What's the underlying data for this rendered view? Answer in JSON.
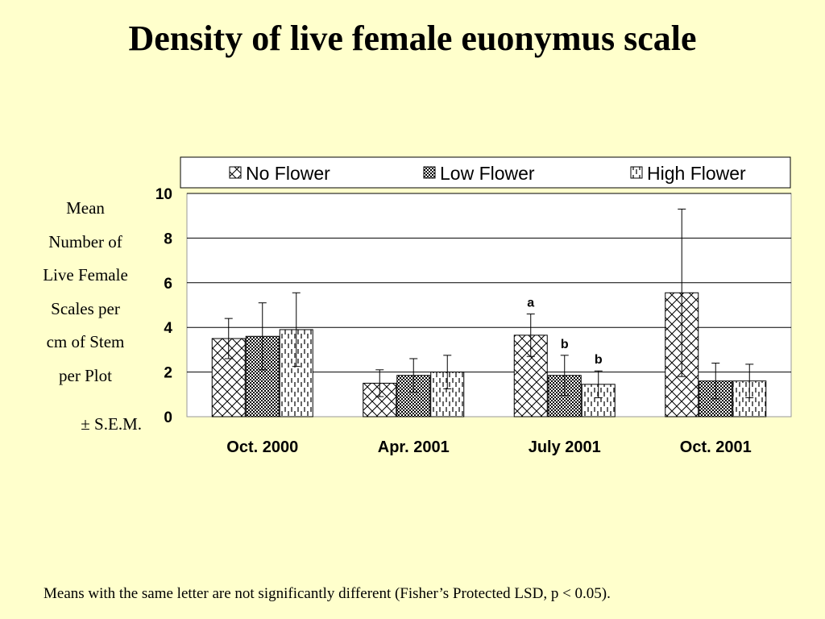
{
  "slide": {
    "title": "Density of live female euonymus scale",
    "ylabel_lines": [
      "Mean",
      "Number of",
      "Live Female",
      "Scales per",
      "cm of Stem",
      "per Plot"
    ],
    "ylabel_sem": "± S.E.M.",
    "footnote": "Means with the same letter are not significantly different (Fisher’s Protected LSD, p < 0.05)."
  },
  "chart_data": {
    "type": "bar",
    "categories": [
      "Oct. 2000",
      "Apr. 2001",
      "July 2001",
      "Oct. 2001"
    ],
    "series": [
      {
        "name": "No Flower",
        "values": [
          3.5,
          1.5,
          3.65,
          5.55
        ],
        "errors": [
          0.9,
          0.6,
          0.95,
          3.75
        ],
        "labels": [
          "",
          "",
          "a",
          ""
        ],
        "pattern": "diagonal-cross"
      },
      {
        "name": "Low Flower",
        "values": [
          3.6,
          1.85,
          1.85,
          1.6
        ],
        "errors": [
          1.5,
          0.75,
          0.9,
          0.8
        ],
        "labels": [
          "",
          "",
          "b",
          ""
        ],
        "pattern": "dense-check"
      },
      {
        "name": "High Flower",
        "values": [
          3.9,
          2.0,
          1.45,
          1.6
        ],
        "errors": [
          1.65,
          0.75,
          0.6,
          0.75
        ],
        "labels": [
          "",
          "",
          "b",
          ""
        ],
        "pattern": "vertical-dash"
      }
    ],
    "ylim": [
      0,
      10
    ],
    "yticks": [
      0,
      2,
      4,
      6,
      8,
      10
    ],
    "grid": true,
    "legend_position": "top",
    "colors": {
      "background": "#ffffcc",
      "plot_area": "#ffffff",
      "bar_stroke": "#000000",
      "grid": "#000000"
    }
  }
}
